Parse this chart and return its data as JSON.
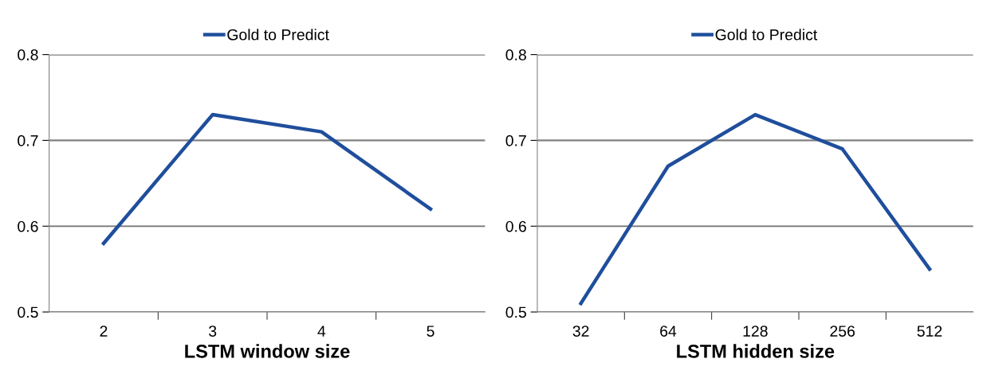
{
  "chart_data": [
    {
      "type": "line",
      "xlabel": "LSTM window size",
      "categories": [
        "2",
        "3",
        "4",
        "5"
      ],
      "series": [
        {
          "name": "Gold to Predict",
          "color": "#1f4e9c",
          "values": [
            0.58,
            0.73,
            0.71,
            0.62
          ]
        }
      ],
      "ylim": [
        0.5,
        0.8
      ],
      "yticks": [
        0.5,
        0.6,
        0.7,
        0.8
      ],
      "grid": "y",
      "legend": "top",
      "marker": "none",
      "line_style": "solid"
    },
    {
      "type": "line",
      "xlabel": "LSTM hidden size",
      "categories": [
        "32",
        "64",
        "128",
        "256",
        "512"
      ],
      "series": [
        {
          "name": "Gold to Predict",
          "color": "#1f4e9c",
          "values": [
            0.51,
            0.67,
            0.73,
            0.69,
            0.55
          ]
        }
      ],
      "ylim": [
        0.5,
        0.8
      ],
      "yticks": [
        0.5,
        0.6,
        0.7,
        0.8
      ],
      "grid": "y",
      "legend": "top",
      "marker": "none",
      "line_style": "solid"
    }
  ]
}
